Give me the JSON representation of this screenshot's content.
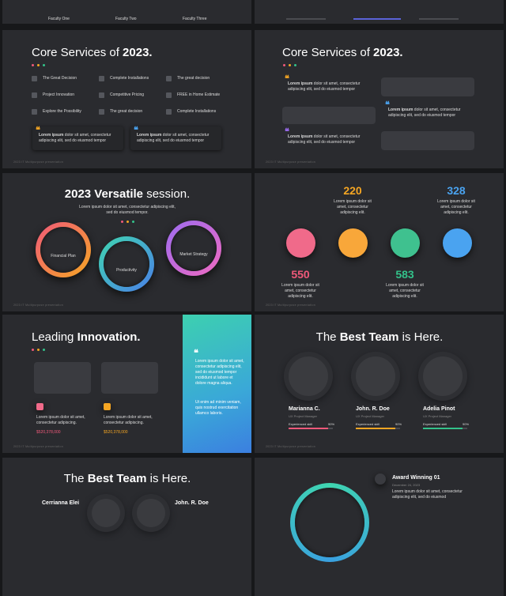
{
  "top": {
    "faculty": [
      "Faculty One",
      "Faculty Two",
      "Faculty Three"
    ]
  },
  "footer": "2023 IT Multipurpose presentation",
  "services": {
    "title_prefix": "Core Services of",
    "title_bold": "2023.",
    "items": [
      "The Great Decision",
      "Complete Installations",
      "The great decision",
      "Project Innovation",
      "Competitive Pricing",
      "FREE in Home Estimate",
      "Explore the Possibility",
      "The great decision",
      "Complete Installations"
    ],
    "quote_lead": "Lorem ipsum",
    "quote_rest": "dolor sit amet, consectetur adipiscing elit, sed do eiusmod tempor"
  },
  "versatile": {
    "title_bold": "2023 Versatile",
    "title_rest": "session.",
    "description": "Lorem ipsum dolor sit amet, consectetur adipiscing elit, sed do eiusmod tempor.",
    "rings": [
      "Financial Plan",
      "Productivity",
      "Market Strategy"
    ]
  },
  "stats": {
    "numbers": [
      "220",
      "328",
      "550",
      "583"
    ],
    "description": "Lorem ipsum dolor sit amet, consectetur adipiscing elit."
  },
  "innovation": {
    "title_prefix": "Leading",
    "title_bold": "Innovation.",
    "quote": "Lorem ipsum dolor sit amet, consectetur adipiscing elit, sed do eiusmod tempor incididunt ut labore et dolore magna aliqua.",
    "quote2": "Ut enim ad minim veniam, quis nostrud exercitation ullamco laboris.",
    "card_text": "Lorem ipsum dolor sit amet, consectetur adipiscing.",
    "price": "$520,378,000"
  },
  "team": {
    "title_prefix": "The",
    "title_bold": "Best Team",
    "title_suffix": "is Here.",
    "names": [
      "Marianna C.",
      "John. R. Doe",
      "Adelia Pinot"
    ],
    "role": "UX Project Manager",
    "skill": "Experienced skill",
    "skill_value": "90%"
  },
  "team2": {
    "names": [
      "Cerrianna Elei",
      "John. R. Doe"
    ]
  },
  "award": {
    "title": "Award Winning 01",
    "date": "December 24, 2023",
    "text": "Lorem ipsum dolor sit amet, consectetur adipiscing elit, sed do eiusmod"
  }
}
